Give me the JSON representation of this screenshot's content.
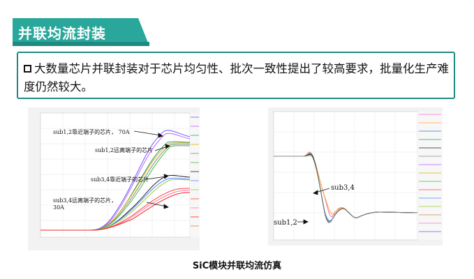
{
  "header": {
    "title": "并联均流封装"
  },
  "body": {
    "text": "大数量芯片并联封装对于芯片均匀性、批次一致性提出了较高要求，批量化生产难度仍然较大。"
  },
  "left_chart": {
    "annotations": [
      "sub1,2靠近端子的芯片， 70A",
      "sub1,2远离端子的芯片",
      "sub3,4靠近端子的芯片",
      "sub3,4远离端子的芯片，",
      "30A"
    ]
  },
  "right_chart": {
    "annotations": [
      "sub3,4",
      "sub1,2"
    ]
  },
  "caption": "SiC模块并联均流仿真",
  "colors": {
    "accent": "#1f8a80",
    "accent_light": "#2aa79b"
  }
}
